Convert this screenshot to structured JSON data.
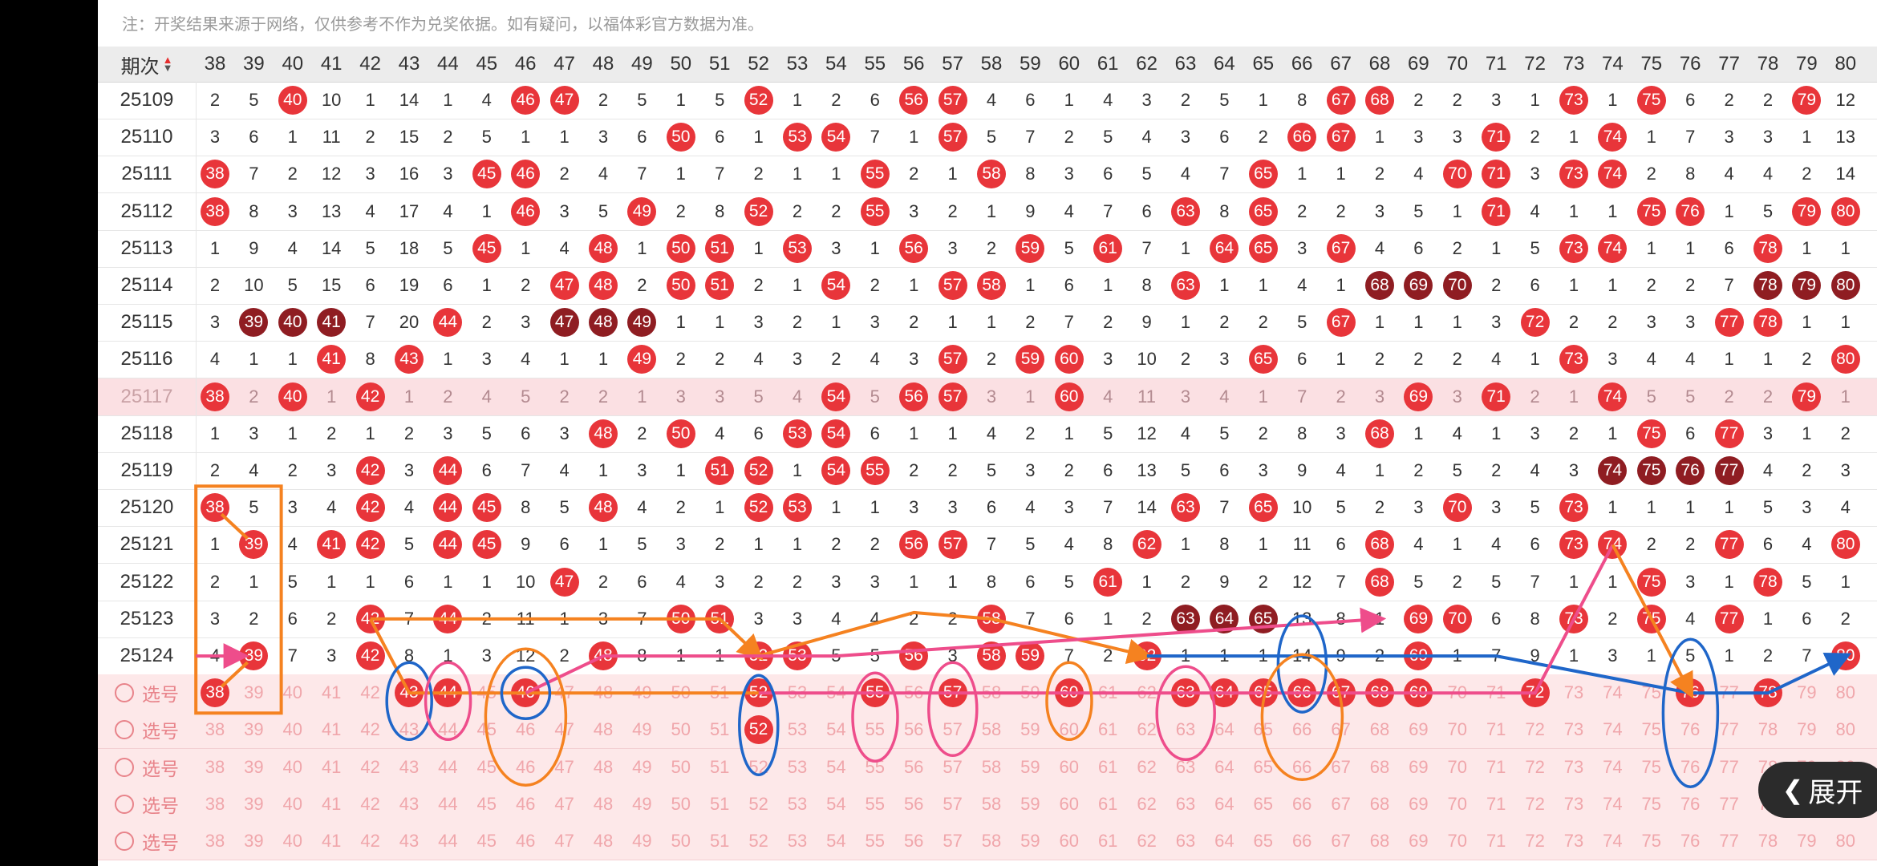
{
  "notice": "注：开奖结果来源于网络，仅供参考不作为兑奖依据。如有疑问，以福体彩官方数据为准。",
  "header": {
    "period_label": "期次",
    "sort_icon": "sort-up-down-icon",
    "columns": [
      38,
      39,
      40,
      41,
      42,
      43,
      44,
      45,
      46,
      47,
      48,
      49,
      50,
      51,
      52,
      53,
      54,
      55,
      56,
      57,
      58,
      59,
      60,
      61,
      62,
      63,
      64,
      65,
      66,
      67,
      68,
      69,
      70,
      71,
      72,
      73,
      74,
      75,
      76,
      77,
      78,
      79,
      80
    ]
  },
  "rows": [
    {
      "issue": "25109",
      "cells": [
        "2",
        "5",
        "40",
        "10",
        "1",
        "14",
        "1",
        "4",
        "46",
        "47",
        "2",
        "5",
        "1",
        "5",
        "52",
        "1",
        "2",
        "6",
        "56",
        "57",
        "4",
        "6",
        "1",
        "4",
        "3",
        "2",
        "5",
        "1",
        "8",
        "67",
        "68",
        "2",
        "2",
        "3",
        "1",
        "73",
        "1",
        "75",
        "6",
        "2",
        "2",
        "79",
        "12"
      ]
    },
    {
      "issue": "25110",
      "cells": [
        "3",
        "6",
        "1",
        "11",
        "2",
        "15",
        "2",
        "5",
        "1",
        "1",
        "3",
        "6",
        "50",
        "6",
        "1",
        "53",
        "54",
        "7",
        "1",
        "57",
        "5",
        "7",
        "2",
        "5",
        "4",
        "3",
        "6",
        "2",
        "66",
        "67",
        "1",
        "3",
        "3",
        "71",
        "2",
        "1",
        "74",
        "1",
        "7",
        "3",
        "3",
        "1",
        "13"
      ]
    },
    {
      "issue": "25111",
      "cells": [
        "38",
        "7",
        "2",
        "12",
        "3",
        "16",
        "3",
        "45",
        "46",
        "2",
        "4",
        "7",
        "1",
        "7",
        "2",
        "1",
        "1",
        "55",
        "2",
        "1",
        "58",
        "8",
        "3",
        "6",
        "5",
        "4",
        "7",
        "65",
        "1",
        "1",
        "2",
        "4",
        "70",
        "71",
        "3",
        "73",
        "74",
        "2",
        "8",
        "4",
        "4",
        "2",
        "14"
      ]
    },
    {
      "issue": "25112",
      "cells": [
        "38",
        "8",
        "3",
        "13",
        "4",
        "17",
        "4",
        "1",
        "46",
        "3",
        "5",
        "49",
        "2",
        "8",
        "52",
        "2",
        "2",
        "55",
        "3",
        "2",
        "1",
        "9",
        "4",
        "7",
        "6",
        "63",
        "8",
        "65",
        "2",
        "2",
        "3",
        "5",
        "1",
        "71",
        "4",
        "1",
        "1",
        "75",
        "76",
        "1",
        "5",
        "79",
        "80"
      ]
    },
    {
      "issue": "25113",
      "cells": [
        "1",
        "9",
        "4",
        "14",
        "5",
        "18",
        "5",
        "45",
        "1",
        "4",
        "48",
        "1",
        "50",
        "51",
        "1",
        "53",
        "3",
        "1",
        "56",
        "3",
        "2",
        "59",
        "5",
        "61",
        "7",
        "1",
        "64",
        "65",
        "3",
        "67",
        "4",
        "6",
        "2",
        "1",
        "5",
        "73",
        "74",
        "1",
        "1",
        "6",
        "78",
        "1",
        "1"
      ]
    },
    {
      "issue": "25114",
      "cells": [
        "2",
        "10",
        "5",
        "15",
        "6",
        "19",
        "6",
        "1",
        "2",
        "47",
        "48",
        "2",
        "50",
        "51",
        "2",
        "1",
        "54",
        "2",
        "1",
        "57",
        "58",
        "1",
        "6",
        "1",
        "8",
        "63",
        "1",
        "1",
        "4",
        "1",
        "68",
        "69",
        "70",
        "2",
        "6",
        "1",
        "1",
        "2",
        "2",
        "7",
        "78",
        "79",
        "80"
      ]
    },
    {
      "issue": "25115",
      "cells": [
        "3",
        "39",
        "40",
        "41",
        "7",
        "20",
        "44",
        "2",
        "3",
        "47",
        "48",
        "49",
        "1",
        "1",
        "3",
        "2",
        "1",
        "3",
        "2",
        "1",
        "1",
        "2",
        "7",
        "2",
        "9",
        "1",
        "2",
        "2",
        "5",
        "67",
        "1",
        "1",
        "1",
        "3",
        "72",
        "2",
        "2",
        "3",
        "3",
        "77",
        "78",
        "1",
        "1"
      ]
    },
    {
      "issue": "25116",
      "cells": [
        "4",
        "1",
        "1",
        "41",
        "8",
        "43",
        "1",
        "3",
        "4",
        "1",
        "1",
        "49",
        "2",
        "2",
        "4",
        "3",
        "2",
        "4",
        "3",
        "57",
        "2",
        "59",
        "60",
        "3",
        "10",
        "2",
        "3",
        "65",
        "6",
        "1",
        "2",
        "2",
        "2",
        "4",
        "1",
        "73",
        "3",
        "4",
        "4",
        "1",
        "1",
        "2",
        "80"
      ]
    },
    {
      "issue": "25117",
      "cells": [
        "38",
        "2",
        "40",
        "1",
        "42",
        "1",
        "2",
        "4",
        "5",
        "2",
        "2",
        "1",
        "3",
        "3",
        "5",
        "4",
        "54",
        "5",
        "56",
        "57",
        "3",
        "1",
        "60",
        "4",
        "11",
        "3",
        "4",
        "1",
        "7",
        "2",
        "3",
        "69",
        "3",
        "71",
        "2",
        "1",
        "74",
        "5",
        "5",
        "2",
        "2",
        "79",
        "1"
      ]
    },
    {
      "issue": "25118",
      "cells": [
        "1",
        "3",
        "1",
        "2",
        "1",
        "2",
        "3",
        "5",
        "6",
        "3",
        "48",
        "2",
        "50",
        "4",
        "6",
        "53",
        "54",
        "6",
        "1",
        "1",
        "4",
        "2",
        "1",
        "5",
        "12",
        "4",
        "5",
        "2",
        "8",
        "3",
        "68",
        "1",
        "4",
        "1",
        "3",
        "2",
        "1",
        "75",
        "6",
        "77",
        "3",
        "1",
        "2"
      ]
    },
    {
      "issue": "25119",
      "cells": [
        "2",
        "4",
        "2",
        "3",
        "42",
        "3",
        "44",
        "6",
        "7",
        "4",
        "1",
        "3",
        "1",
        "51",
        "52",
        "1",
        "54",
        "55",
        "2",
        "2",
        "5",
        "3",
        "2",
        "6",
        "13",
        "5",
        "6",
        "3",
        "9",
        "4",
        "1",
        "2",
        "5",
        "2",
        "4",
        "3",
        "74",
        "75",
        "76",
        "77",
        "4",
        "2",
        "3"
      ]
    },
    {
      "issue": "25120",
      "cells": [
        "38",
        "5",
        "3",
        "4",
        "42",
        "4",
        "44",
        "45",
        "8",
        "5",
        "48",
        "4",
        "2",
        "1",
        "52",
        "53",
        "1",
        "1",
        "3",
        "3",
        "6",
        "4",
        "3",
        "7",
        "14",
        "63",
        "7",
        "65",
        "10",
        "5",
        "2",
        "3",
        "70",
        "3",
        "5",
        "73",
        "1",
        "1",
        "1",
        "1",
        "5",
        "3",
        "4"
      ]
    },
    {
      "issue": "25121",
      "cells": [
        "1",
        "39",
        "4",
        "41",
        "42",
        "5",
        "44",
        "45",
        "9",
        "6",
        "1",
        "5",
        "3",
        "2",
        "1",
        "1",
        "2",
        "2",
        "56",
        "57",
        "7",
        "5",
        "4",
        "8",
        "62",
        "1",
        "8",
        "1",
        "11",
        "6",
        "68",
        "4",
        "1",
        "4",
        "6",
        "73",
        "74",
        "2",
        "2",
        "77",
        "6",
        "4",
        "80"
      ]
    },
    {
      "issue": "25122",
      "cells": [
        "2",
        "1",
        "5",
        "1",
        "1",
        "6",
        "1",
        "1",
        "10",
        "47",
        "2",
        "6",
        "4",
        "3",
        "2",
        "2",
        "3",
        "3",
        "1",
        "1",
        "8",
        "6",
        "5",
        "61",
        "1",
        "2",
        "9",
        "2",
        "12",
        "7",
        "68",
        "5",
        "2",
        "5",
        "7",
        "1",
        "1",
        "75",
        "3",
        "1",
        "78",
        "5",
        "1"
      ]
    },
    {
      "issue": "25123",
      "cells": [
        "3",
        "2",
        "6",
        "2",
        "42",
        "7",
        "44",
        "2",
        "11",
        "1",
        "3",
        "7",
        "50",
        "51",
        "3",
        "3",
        "4",
        "4",
        "2",
        "2",
        "58",
        "7",
        "6",
        "1",
        "2",
        "63",
        "64",
        "65",
        "13",
        "8",
        "1",
        "69",
        "70",
        "6",
        "8",
        "73",
        "2",
        "75",
        "4",
        "77",
        "1",
        "6",
        "2"
      ]
    },
    {
      "issue": "25124",
      "cells": [
        "4",
        "39",
        "7",
        "3",
        "42",
        "8",
        "1",
        "3",
        "12",
        "2",
        "48",
        "8",
        "1",
        "1",
        "52",
        "53",
        "5",
        "5",
        "56",
        "3",
        "58",
        "59",
        "7",
        "2",
        "62",
        "1",
        "1",
        "1",
        "14",
        "9",
        "2",
        "69",
        "1",
        "7",
        "9",
        "1",
        "3",
        "1",
        "5",
        "1",
        "2",
        "7",
        "80"
      ]
    }
  ],
  "select_rows": [
    {
      "label": "选号",
      "picked": [
        "38",
        "43",
        "44",
        "46",
        "52",
        "55",
        "57",
        "60",
        "63",
        "64",
        "65",
        "66",
        "67",
        "68",
        "69",
        "72",
        "76",
        "78"
      ]
    },
    {
      "label": "选号",
      "picked": [
        "52"
      ]
    },
    {
      "label": "选号",
      "picked": []
    },
    {
      "label": "选号",
      "picked": []
    },
    {
      "label": "选号",
      "picked": []
    }
  ],
  "colors": {
    "ball": "#e8353a",
    "ball_dark": "#8f1d22",
    "orange": "#f58220",
    "pink": "#ee4d8b",
    "blue": "#1f66c9"
  },
  "expand_button": {
    "label": "展开",
    "icon": "chevron-left-icon"
  }
}
